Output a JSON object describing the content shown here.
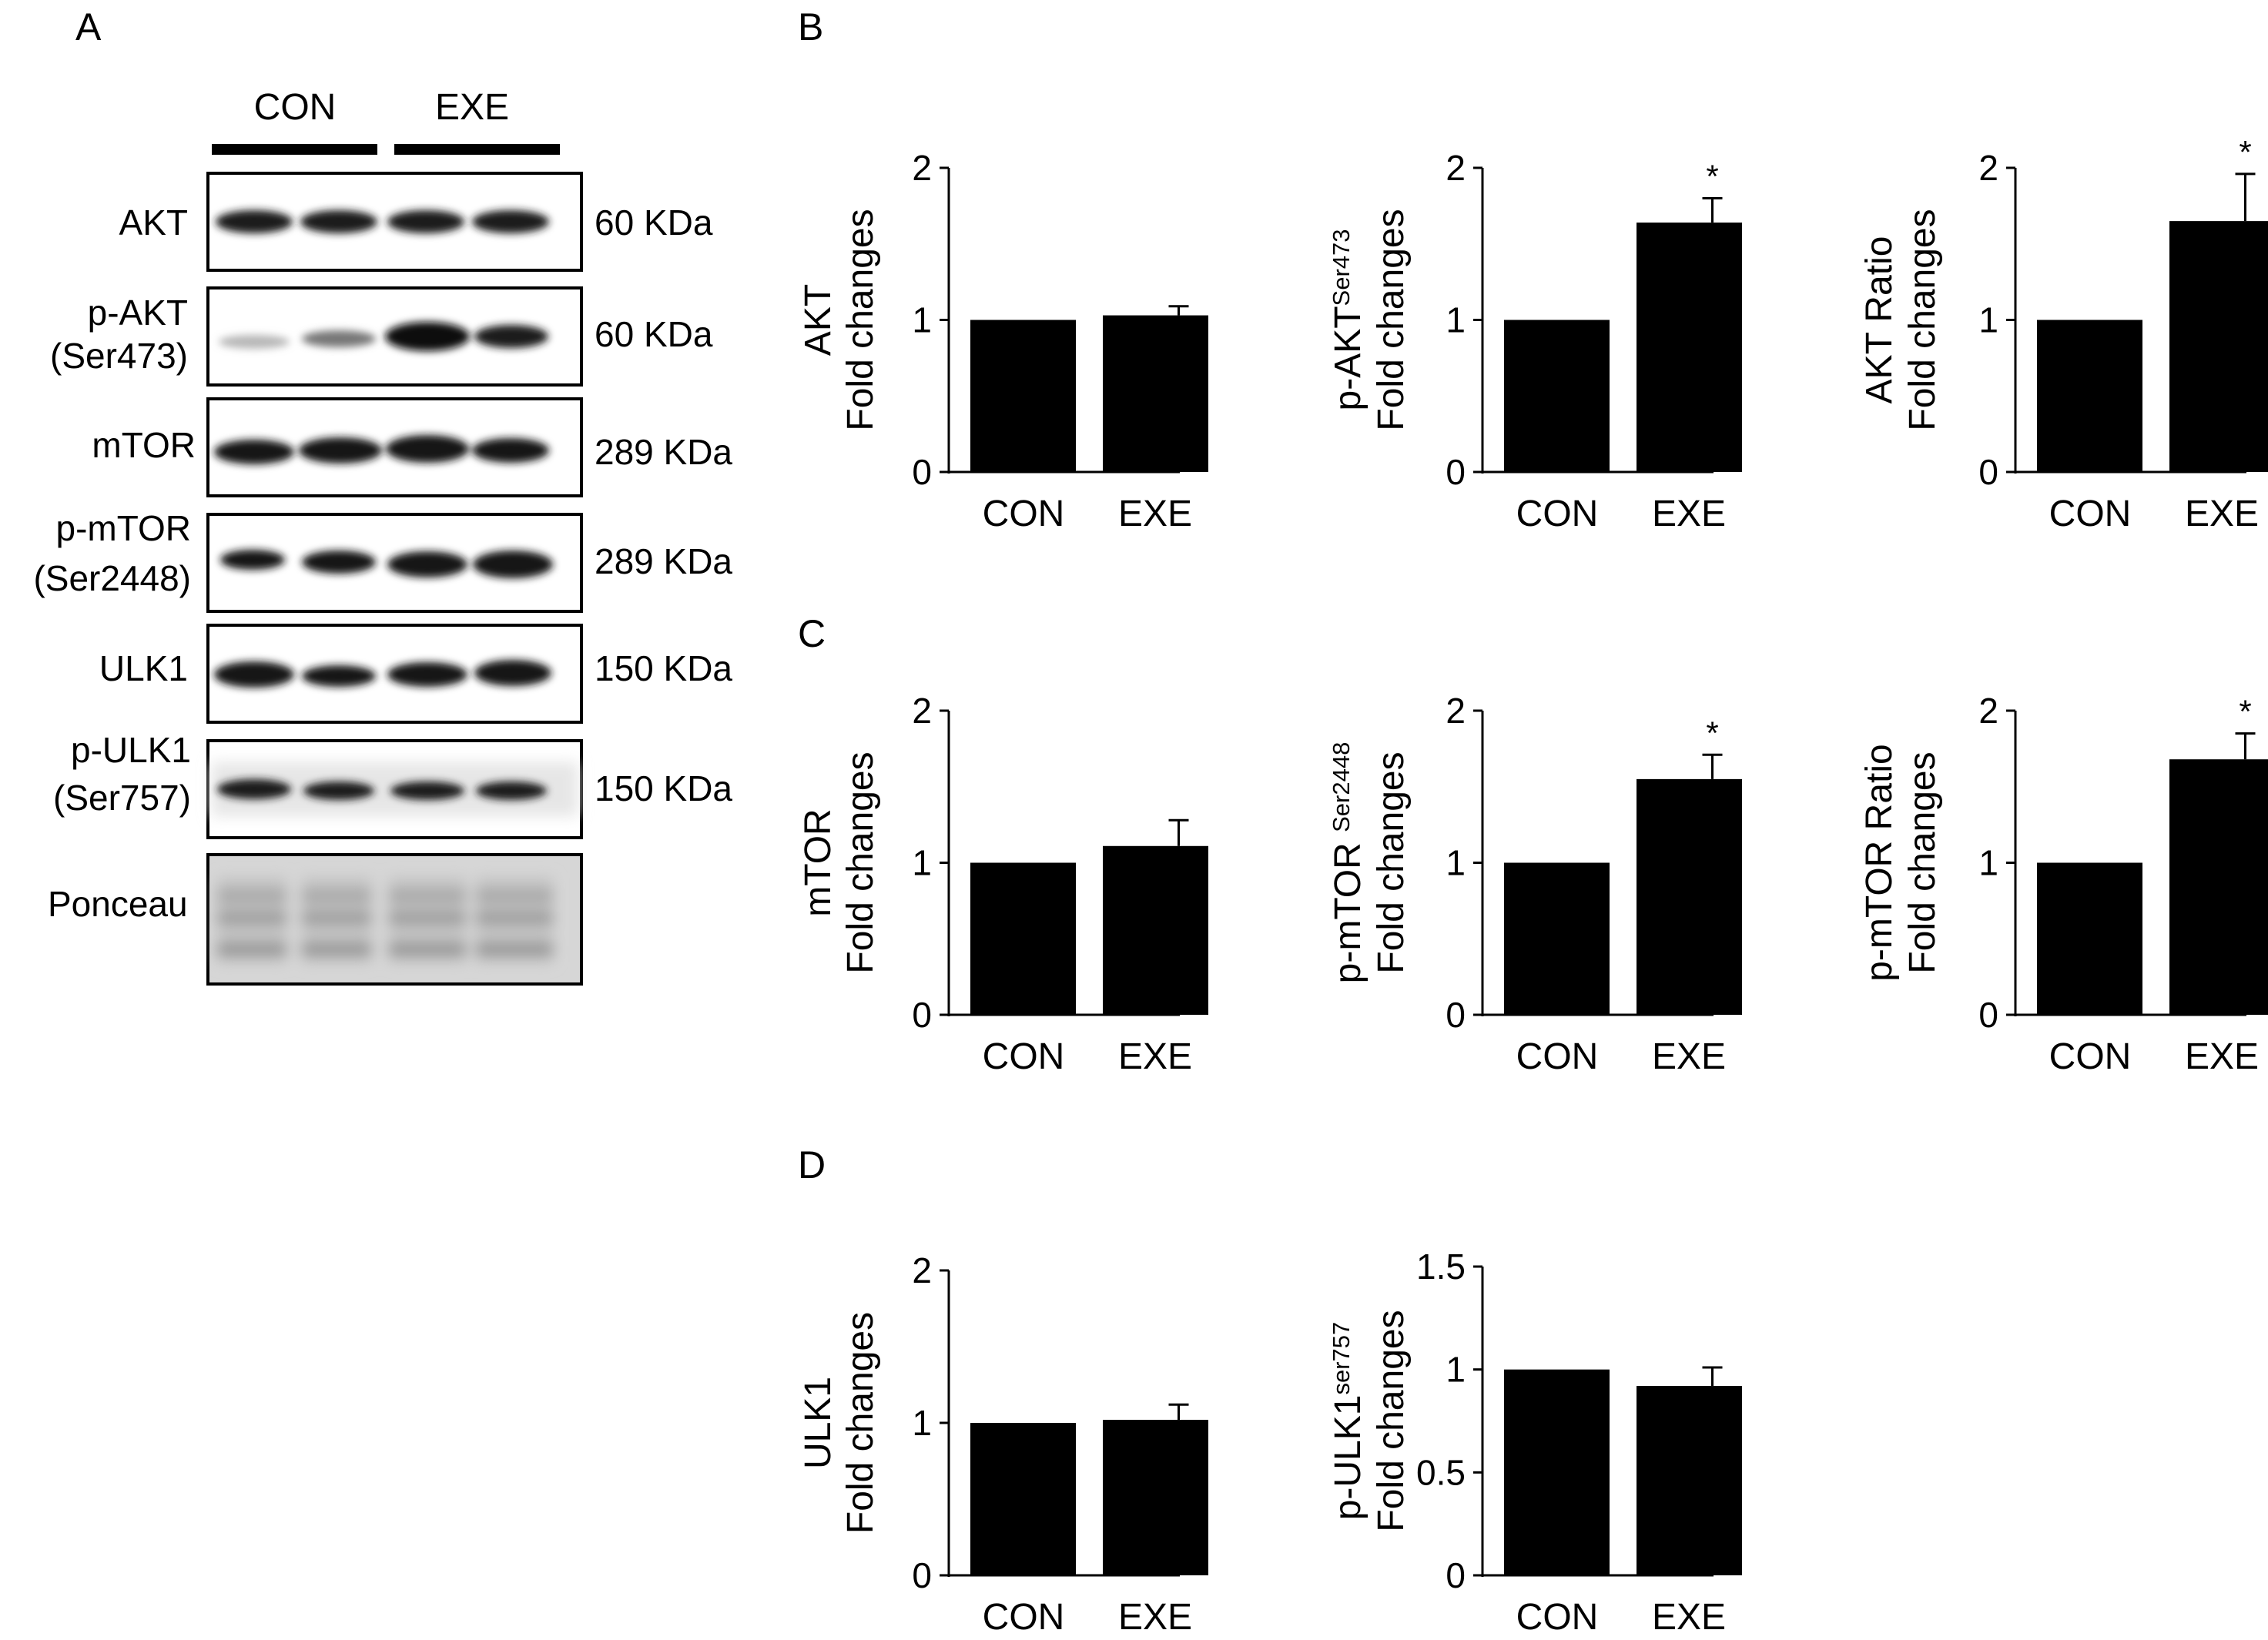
{
  "panel_letters": [
    "A",
    "B",
    "C",
    "D"
  ],
  "blot": {
    "group_labels": [
      "CON",
      "EXE"
    ],
    "lanes": [
      {
        "label_lines": [
          "AKT"
        ],
        "kda": "60 KDa"
      },
      {
        "label_lines": [
          "p-AKT",
          "(Ser473)"
        ],
        "kda": "60 KDa"
      },
      {
        "label_lines": [
          "mTOR"
        ],
        "kda": "289 KDa"
      },
      {
        "label_lines": [
          "p-mTOR",
          "(Ser2448)"
        ],
        "kda": "289 KDa"
      },
      {
        "label_lines": [
          "ULK1"
        ],
        "kda": "150 KDa"
      },
      {
        "label_lines": [
          "p-ULK1",
          "(Ser757)"
        ],
        "kda": "150 KDa"
      },
      {
        "label_lines": [
          "Ponceau"
        ],
        "kda": ""
      }
    ]
  },
  "chart_data": [
    {
      "type": "bar",
      "panel": "B",
      "categories": [
        "CON",
        "EXE"
      ],
      "values": [
        1.0,
        1.03
      ],
      "errors": [
        0,
        0.06
      ],
      "significance": [
        "",
        ""
      ],
      "ylabel": [
        "AKT",
        "Fold changes"
      ],
      "ylabel_sup": "",
      "ylim": [
        0,
        2
      ],
      "yticks": [
        0,
        1,
        2
      ],
      "ytick_labels": [
        "0",
        "1",
        "2"
      ]
    },
    {
      "type": "bar",
      "panel": "B",
      "categories": [
        "CON",
        "EXE"
      ],
      "values": [
        1.0,
        1.64
      ],
      "errors": [
        0,
        0.16
      ],
      "significance": [
        "",
        "*"
      ],
      "ylabel": [
        "p-AKT",
        "Fold changes"
      ],
      "ylabel_sup": "Ser473",
      "ylim": [
        0,
        2
      ],
      "yticks": [
        0,
        1,
        2
      ],
      "ytick_labels": [
        "0",
        "1",
        "2"
      ]
    },
    {
      "type": "bar",
      "panel": "B",
      "categories": [
        "CON",
        "EXE"
      ],
      "values": [
        1.0,
        1.65
      ],
      "errors": [
        0,
        0.31
      ],
      "significance": [
        "",
        "*"
      ],
      "ylabel": [
        "AKT Ratio",
        "Fold changes"
      ],
      "ylabel_sup": "",
      "ylim": [
        0,
        2
      ],
      "yticks": [
        0,
        1,
        2
      ],
      "ytick_labels": [
        "0",
        "1",
        "2"
      ]
    },
    {
      "type": "bar",
      "panel": "C",
      "categories": [
        "CON",
        "EXE"
      ],
      "values": [
        1.0,
        1.11
      ],
      "errors": [
        0,
        0.17
      ],
      "significance": [
        "",
        ""
      ],
      "ylabel": [
        "mTOR",
        "Fold changes"
      ],
      "ylabel_sup": "",
      "ylim": [
        0,
        2
      ],
      "yticks": [
        0,
        1,
        2
      ],
      "ytick_labels": [
        "0",
        "1",
        "2"
      ]
    },
    {
      "type": "bar",
      "panel": "C",
      "categories": [
        "CON",
        "EXE"
      ],
      "values": [
        1.0,
        1.55
      ],
      "errors": [
        0,
        0.16
      ],
      "significance": [
        "",
        "*"
      ],
      "ylabel": [
        "p-mTOR ",
        "Fold changes"
      ],
      "ylabel_sup": "Ser2448",
      "ylim": [
        0,
        2
      ],
      "yticks": [
        0,
        1,
        2
      ],
      "ytick_labels": [
        "0",
        "1",
        "2"
      ]
    },
    {
      "type": "bar",
      "panel": "C",
      "categories": [
        "CON",
        "EXE"
      ],
      "values": [
        1.0,
        1.68
      ],
      "errors": [
        0,
        0.17
      ],
      "significance": [
        "",
        "*"
      ],
      "ylabel": [
        "p-mTOR Ratio",
        "Fold changes"
      ],
      "ylabel_sup": "",
      "ylim": [
        0,
        2
      ],
      "yticks": [
        0,
        1,
        2
      ],
      "ytick_labels": [
        "0",
        "1",
        "2"
      ]
    },
    {
      "type": "bar",
      "panel": "D",
      "categories": [
        "CON",
        "EXE"
      ],
      "values": [
        1.0,
        1.02
      ],
      "errors": [
        0,
        0.1
      ],
      "significance": [
        "",
        ""
      ],
      "ylabel": [
        "ULK1",
        "Fold changes"
      ],
      "ylabel_sup": "",
      "ylim": [
        0,
        2
      ],
      "yticks": [
        0,
        1,
        2
      ],
      "ytick_labels": [
        "0",
        "1",
        "2"
      ]
    },
    {
      "type": "bar",
      "panel": "D",
      "categories": [
        "CON",
        "EXE"
      ],
      "values": [
        1.0,
        0.92
      ],
      "errors": [
        0,
        0.09
      ],
      "significance": [
        "",
        ""
      ],
      "ylabel": [
        "p-ULK1",
        "Fold changes"
      ],
      "ylabel_sup": "ser757",
      "ylim": [
        0,
        1.5
      ],
      "yticks": [
        0,
        0.5,
        1,
        1.5
      ],
      "ytick_labels": [
        "0",
        "0.5",
        "1",
        "1.5"
      ]
    }
  ]
}
